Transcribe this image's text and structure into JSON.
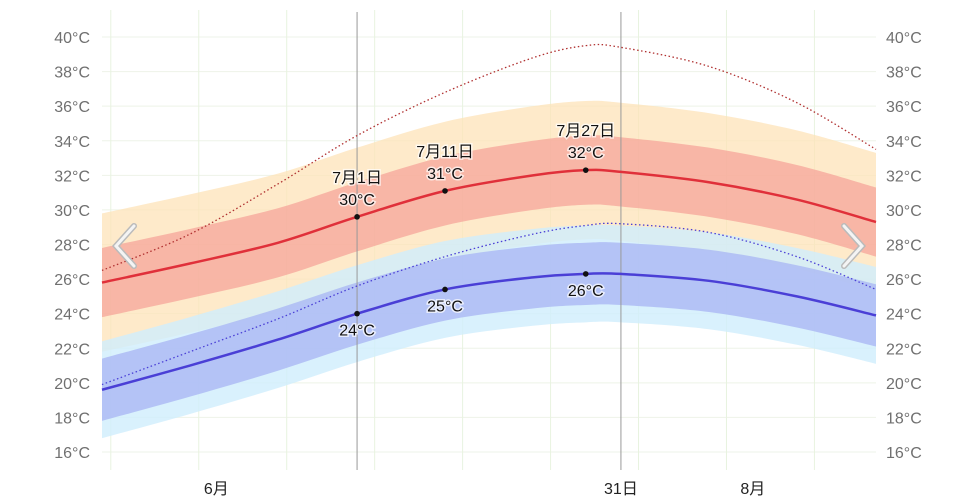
{
  "chart_data": {
    "type": "area",
    "title": "",
    "ylabel": "",
    "xlabel": "",
    "ylim": [
      16,
      40
    ],
    "y_ticks": [
      "16°C",
      "18°C",
      "20°C",
      "22°C",
      "24°C",
      "26°C",
      "28°C",
      "30°C",
      "32°C",
      "34°C",
      "36°C",
      "38°C",
      "40°C"
    ],
    "x_labels": [
      {
        "date": "06-15",
        "label": "6月"
      },
      {
        "date": "07-31",
        "label": "31日"
      },
      {
        "date": "08-15",
        "label": "8月"
      }
    ],
    "x_range": [
      "06-02",
      "08-29"
    ],
    "grid": true,
    "dates": [
      "06-02",
      "06-12",
      "06-22",
      "07-01",
      "07-11",
      "07-21",
      "07-27",
      "07-31",
      "08-10",
      "08-20",
      "08-29"
    ],
    "series": [
      {
        "key": "high",
        "color": "#e0303a",
        "values": [
          25.8,
          26.9,
          28.1,
          29.6,
          31.1,
          32.0,
          32.3,
          32.2,
          31.6,
          30.6,
          29.3
        ]
      },
      {
        "key": "low",
        "color": "#4a3fd6",
        "values": [
          19.6,
          21.0,
          22.5,
          24.0,
          25.4,
          26.1,
          26.3,
          26.3,
          25.9,
          25.0,
          23.9
        ]
      },
      {
        "key": "high-extreme",
        "style": "dotted",
        "color": "#b03030",
        "values": [
          26.5,
          28.6,
          31.5,
          34.3,
          36.8,
          38.8,
          39.5,
          39.4,
          38.3,
          36.2,
          33.5
        ]
      },
      {
        "key": "low-extreme",
        "style": "dotted",
        "color": "#4a3fd6",
        "values": [
          19.9,
          21.8,
          23.7,
          25.6,
          27.3,
          28.6,
          29.1,
          29.2,
          28.7,
          27.3,
          25.4
        ]
      }
    ],
    "bands": [
      {
        "key": "high-10-90",
        "color": "#fde3b8",
        "spread": 4.0,
        "base": "high"
      },
      {
        "key": "high-25-75",
        "color": "#f5a49a",
        "spread": 2.0,
        "base": "high"
      },
      {
        "key": "low-10-90",
        "color": "#cfeefc",
        "spread": 2.8,
        "base": "low"
      },
      {
        "key": "low-25-75",
        "color": "#aab8f4",
        "spread": 1.8,
        "base": "low"
      }
    ],
    "markers": [
      "07-01",
      "07-31"
    ],
    "annotations": [
      {
        "date": "07-01",
        "series": "high",
        "label": "7月1日",
        "value": "30°C",
        "pos": "above"
      },
      {
        "date": "07-11",
        "series": "high",
        "label": "7月11日",
        "value": "31°C",
        "pos": "above"
      },
      {
        "date": "07-27",
        "series": "high",
        "label": "7月27日",
        "value": "32°C",
        "pos": "above"
      },
      {
        "date": "07-01",
        "series": "low",
        "value": "24°C",
        "pos": "below"
      },
      {
        "date": "07-11",
        "series": "low",
        "value": "25°C",
        "pos": "below"
      },
      {
        "date": "07-27",
        "series": "low",
        "value": "26°C",
        "pos": "below"
      }
    ]
  },
  "nav": {
    "prev_icon": "chevron-left-icon",
    "next_icon": "chevron-right-icon"
  }
}
